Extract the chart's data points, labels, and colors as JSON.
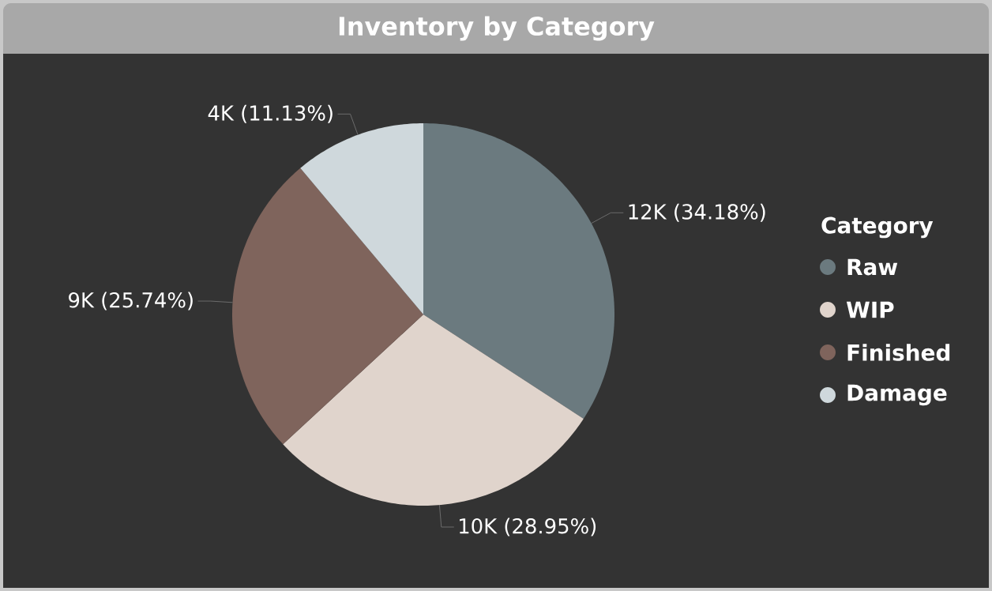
{
  "chart_data": {
    "type": "pie",
    "title": "Inventory by Category",
    "categories": [
      "Raw",
      "WIP",
      "Finished",
      "Damage"
    ],
    "values": [
      34.18,
      28.95,
      25.74,
      11.13
    ],
    "value_labels": [
      "12K (34.18%)",
      "10K (28.95%)",
      "9K (25.74%)",
      "4K (11.13%)"
    ],
    "colors": [
      "#6b7a7f",
      "#e0d4cc",
      "#7f645c",
      "#cfd8dc"
    ],
    "legend": "right",
    "legend_title": "Category"
  }
}
